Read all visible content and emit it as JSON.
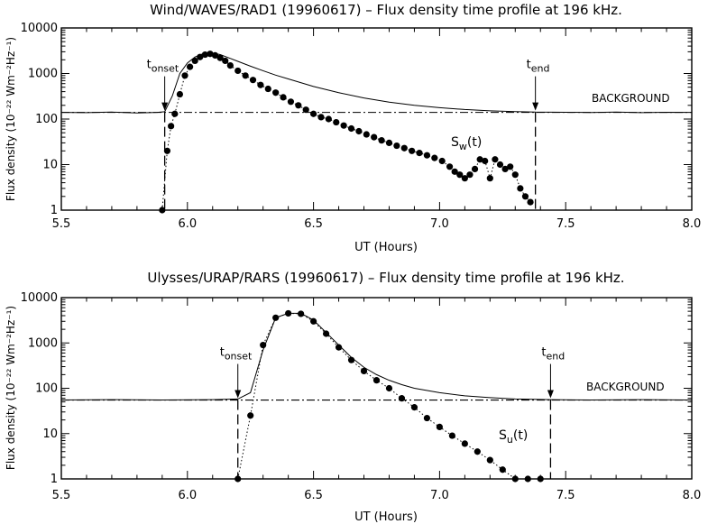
{
  "chart_data": [
    {
      "type": "line",
      "title": "Wind/WAVES/RAD1 (19960617) – Flux density time profile at 196 kHz.",
      "xlabel": "UT (Hours)",
      "ylabel": "Flux density (10⁻²² Wm⁻²Hz⁻¹)",
      "xlim": [
        5.5,
        8.0
      ],
      "ylim": [
        1,
        10000
      ],
      "yscale": "log",
      "xticks": [
        "5.5",
        "6.0",
        "6.5",
        "7.0",
        "7.5",
        "8.0"
      ],
      "yticks": [
        "1",
        "10",
        "100",
        "1000",
        "10000"
      ],
      "background_label": "BACKGROUND",
      "background_level": 140,
      "onset": {
        "x": 5.91,
        "label": "t",
        "sub": "onset"
      },
      "end": {
        "x": 7.38,
        "label": "t",
        "sub": "end"
      },
      "series_label": {
        "main": "S",
        "sub": "w",
        "tail": "(t)"
      },
      "series": [
        {
          "style": "solid",
          "x": [
            5.5,
            5.6,
            5.7,
            5.8,
            5.88,
            5.91,
            5.94,
            5.97,
            6.0,
            6.03,
            6.06,
            6.1,
            6.13,
            6.16,
            6.2,
            6.25,
            6.3,
            6.35,
            6.4,
            6.5,
            6.6,
            6.7,
            6.8,
            6.9,
            7.0,
            7.1,
            7.2,
            7.3,
            7.38,
            7.5,
            7.6,
            7.7,
            7.8,
            7.9,
            8.0
          ],
          "values": [
            140,
            138,
            142,
            136,
            140,
            145,
            320,
            1000,
            1700,
            2300,
            2700,
            2800,
            2600,
            2250,
            1850,
            1450,
            1150,
            920,
            760,
            520,
            380,
            290,
            235,
            200,
            178,
            162,
            152,
            146,
            142,
            141,
            139,
            142,
            138,
            141,
            140
          ]
        },
        {
          "style": "dotted-markers",
          "x": [
            5.9,
            5.92,
            5.935,
            5.95,
            5.97,
            5.99,
            6.01,
            6.03,
            6.05,
            6.07,
            6.09,
            6.11,
            6.13,
            6.15,
            6.17,
            6.2,
            6.23,
            6.26,
            6.29,
            6.32,
            6.35,
            6.38,
            6.41,
            6.44,
            6.47,
            6.5,
            6.53,
            6.56,
            6.59,
            6.62,
            6.65,
            6.68,
            6.71,
            6.74,
            6.77,
            6.8,
            6.83,
            6.86,
            6.89,
            6.92,
            6.95,
            6.98,
            7.01,
            7.04,
            7.06,
            7.08,
            7.1,
            7.12,
            7.14,
            7.16,
            7.18,
            7.2,
            7.22,
            7.24,
            7.26,
            7.28,
            7.3,
            7.32,
            7.34,
            7.36
          ],
          "values": [
            1,
            20,
            70,
            130,
            350,
            900,
            1400,
            1900,
            2300,
            2600,
            2700,
            2500,
            2200,
            1900,
            1500,
            1150,
            900,
            720,
            560,
            460,
            380,
            300,
            240,
            200,
            160,
            130,
            110,
            100,
            85,
            72,
            62,
            54,
            46,
            40,
            34,
            30,
            26,
            23,
            20,
            18,
            16,
            14,
            12,
            9,
            7,
            6,
            5,
            6,
            8,
            13,
            12,
            5,
            13,
            10,
            8,
            9,
            6,
            3,
            2,
            1.5
          ]
        }
      ]
    },
    {
      "type": "line",
      "title": "Ulysses/URAP/RARS (19960617) – Flux density time profile at 196 kHz.",
      "xlabel": "UT (Hours)",
      "ylabel": "Flux density (10⁻²² Wm⁻²Hz⁻¹)",
      "xlim": [
        5.5,
        8.0
      ],
      "ylim": [
        1,
        10000
      ],
      "yscale": "log",
      "xticks": [
        "5.5",
        "6.0",
        "6.5",
        "7.0",
        "7.5",
        "8.0"
      ],
      "yticks": [
        "1",
        "10",
        "100",
        "1000",
        "10000"
      ],
      "background_label": "BACKGROUND",
      "background_level": 55,
      "onset": {
        "x": 6.2,
        "label": "t",
        "sub": "onset"
      },
      "end": {
        "x": 7.44,
        "label": "t",
        "sub": "end"
      },
      "series_label": {
        "main": "S",
        "sub": "u",
        "tail": "(t)"
      },
      "series": [
        {
          "style": "solid",
          "x": [
            5.5,
            5.7,
            5.9,
            6.1,
            6.2,
            6.25,
            6.3,
            6.35,
            6.4,
            6.45,
            6.5,
            6.55,
            6.6,
            6.65,
            6.7,
            6.75,
            6.8,
            6.85,
            6.9,
            7.0,
            7.1,
            7.2,
            7.3,
            7.44,
            7.6,
            7.8,
            8.0
          ],
          "values": [
            55,
            56,
            55,
            56,
            58,
            80,
            700,
            3600,
            4500,
            4500,
            3200,
            1700,
            900,
            480,
            290,
            200,
            150,
            120,
            100,
            80,
            68,
            62,
            58,
            56,
            55,
            56,
            55
          ]
        },
        {
          "style": "dotted-markers",
          "x": [
            6.2,
            6.25,
            6.3,
            6.35,
            6.4,
            6.45,
            6.5,
            6.55,
            6.6,
            6.65,
            6.7,
            6.75,
            6.8,
            6.85,
            6.9,
            6.95,
            7.0,
            7.05,
            7.1,
            7.15,
            7.2,
            7.25,
            7.3,
            7.35,
            7.4
          ],
          "values": [
            1,
            25,
            900,
            3600,
            4500,
            4400,
            3000,
            1600,
            800,
            420,
            240,
            150,
            100,
            60,
            38,
            22,
            14,
            9,
            6,
            4,
            2.6,
            1.6,
            1,
            1,
            1
          ]
        }
      ]
    }
  ]
}
